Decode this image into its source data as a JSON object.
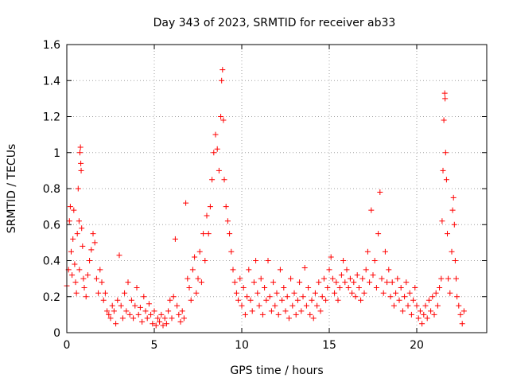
{
  "chart_data": {
    "type": "scatter",
    "title": "Day 343 of 2023, SRMTID for receiver ab33",
    "xlabel": "GPS time / hours",
    "ylabel": "SRMTID / TECUs",
    "xlim": [
      0,
      24
    ],
    "ylim": [
      0,
      1.6
    ],
    "x_ticks": [
      0,
      5,
      10,
      15,
      20
    ],
    "x_tick_labels": [
      "0",
      "5",
      "10",
      "15",
      "20"
    ],
    "y_ticks": [
      0,
      0.2,
      0.4,
      0.6,
      0.8,
      1,
      1.2,
      1.4,
      1.6
    ],
    "y_tick_labels": [
      "0",
      "0.2",
      "0.4",
      "0.6",
      "0.8",
      "1",
      "1.2",
      "1.4",
      "1.6"
    ],
    "grid": true,
    "marker": "plus",
    "series_color": "#ff0000",
    "series": [
      {
        "name": "SRMTID",
        "points": [
          [
            0.0,
            0.26
          ],
          [
            0.1,
            0.35
          ],
          [
            0.15,
            0.62
          ],
          [
            0.2,
            0.7
          ],
          [
            0.25,
            0.45
          ],
          [
            0.3,
            0.32
          ],
          [
            0.35,
            0.52
          ],
          [
            0.4,
            0.68
          ],
          [
            0.45,
            0.38
          ],
          [
            0.5,
            0.28
          ],
          [
            0.55,
            0.22
          ],
          [
            0.6,
            0.55
          ],
          [
            0.65,
            0.8
          ],
          [
            0.7,
            0.62
          ],
          [
            0.72,
            0.35
          ],
          [
            0.75,
            1.0
          ],
          [
            0.78,
            1.03
          ],
          [
            0.8,
            0.94
          ],
          [
            0.82,
            0.9
          ],
          [
            0.85,
            0.58
          ],
          [
            0.9,
            0.48
          ],
          [
            0.95,
            0.3
          ],
          [
            1.0,
            0.25
          ],
          [
            1.1,
            0.2
          ],
          [
            1.2,
            0.32
          ],
          [
            1.3,
            0.4
          ],
          [
            1.4,
            0.46
          ],
          [
            1.5,
            0.55
          ],
          [
            1.6,
            0.5
          ],
          [
            1.7,
            0.3
          ],
          [
            1.8,
            0.22
          ],
          [
            1.9,
            0.35
          ],
          [
            2.0,
            0.28
          ],
          [
            2.1,
            0.18
          ],
          [
            2.2,
            0.22
          ],
          [
            2.3,
            0.12
          ],
          [
            2.4,
            0.1
          ],
          [
            2.5,
            0.08
          ],
          [
            2.6,
            0.15
          ],
          [
            2.7,
            0.12
          ],
          [
            2.8,
            0.05
          ],
          [
            2.9,
            0.18
          ],
          [
            3.0,
            0.43
          ],
          [
            3.1,
            0.15
          ],
          [
            3.2,
            0.08
          ],
          [
            3.3,
            0.22
          ],
          [
            3.4,
            0.12
          ],
          [
            3.5,
            0.28
          ],
          [
            3.6,
            0.1
          ],
          [
            3.7,
            0.18
          ],
          [
            3.8,
            0.08
          ],
          [
            3.9,
            0.15
          ],
          [
            4.0,
            0.25
          ],
          [
            4.1,
            0.1
          ],
          [
            4.2,
            0.14
          ],
          [
            4.3,
            0.06
          ],
          [
            4.4,
            0.2
          ],
          [
            4.5,
            0.12
          ],
          [
            4.6,
            0.08
          ],
          [
            4.7,
            0.16
          ],
          [
            4.8,
            0.1
          ],
          [
            4.9,
            0.05
          ],
          [
            5.0,
            0.12
          ],
          [
            5.1,
            0.04
          ],
          [
            5.2,
            0.08
          ],
          [
            5.3,
            0.06
          ],
          [
            5.4,
            0.1
          ],
          [
            5.5,
            0.04
          ],
          [
            5.6,
            0.08
          ],
          [
            5.7,
            0.05
          ],
          [
            5.8,
            0.12
          ],
          [
            5.9,
            0.18
          ],
          [
            6.0,
            0.08
          ],
          [
            6.1,
            0.2
          ],
          [
            6.2,
            0.52
          ],
          [
            6.3,
            0.15
          ],
          [
            6.4,
            0.1
          ],
          [
            6.5,
            0.06
          ],
          [
            6.6,
            0.12
          ],
          [
            6.7,
            0.08
          ],
          [
            6.8,
            0.72
          ],
          [
            6.9,
            0.3
          ],
          [
            7.0,
            0.25
          ],
          [
            7.1,
            0.18
          ],
          [
            7.2,
            0.35
          ],
          [
            7.3,
            0.42
          ],
          [
            7.4,
            0.22
          ],
          [
            7.5,
            0.3
          ],
          [
            7.6,
            0.45
          ],
          [
            7.7,
            0.28
          ],
          [
            7.8,
            0.55
          ],
          [
            7.9,
            0.4
          ],
          [
            8.0,
            0.65
          ],
          [
            8.1,
            0.55
          ],
          [
            8.2,
            0.7
          ],
          [
            8.3,
            0.85
          ],
          [
            8.4,
            1.0
          ],
          [
            8.5,
            1.1
          ],
          [
            8.6,
            1.02
          ],
          [
            8.7,
            0.9
          ],
          [
            8.8,
            1.2
          ],
          [
            8.85,
            1.4
          ],
          [
            8.9,
            1.46
          ],
          [
            8.95,
            1.18
          ],
          [
            9.0,
            0.85
          ],
          [
            9.1,
            0.7
          ],
          [
            9.2,
            0.62
          ],
          [
            9.3,
            0.55
          ],
          [
            9.4,
            0.45
          ],
          [
            9.5,
            0.35
          ],
          [
            9.6,
            0.28
          ],
          [
            9.7,
            0.22
          ],
          [
            9.8,
            0.18
          ],
          [
            9.9,
            0.3
          ],
          [
            10.0,
            0.15
          ],
          [
            10.1,
            0.25
          ],
          [
            10.2,
            0.1
          ],
          [
            10.3,
            0.2
          ],
          [
            10.4,
            0.35
          ],
          [
            10.5,
            0.18
          ],
          [
            10.6,
            0.12
          ],
          [
            10.7,
            0.28
          ],
          [
            10.8,
            0.4
          ],
          [
            10.9,
            0.22
          ],
          [
            11.0,
            0.15
          ],
          [
            11.1,
            0.3
          ],
          [
            11.2,
            0.1
          ],
          [
            11.3,
            0.25
          ],
          [
            11.4,
            0.18
          ],
          [
            11.5,
            0.4
          ],
          [
            11.6,
            0.2
          ],
          [
            11.7,
            0.12
          ],
          [
            11.8,
            0.28
          ],
          [
            11.9,
            0.15
          ],
          [
            12.0,
            0.22
          ],
          [
            12.1,
            0.1
          ],
          [
            12.2,
            0.35
          ],
          [
            12.3,
            0.18
          ],
          [
            12.4,
            0.25
          ],
          [
            12.5,
            0.12
          ],
          [
            12.6,
            0.2
          ],
          [
            12.7,
            0.08
          ],
          [
            12.8,
            0.3
          ],
          [
            12.9,
            0.15
          ],
          [
            13.0,
            0.22
          ],
          [
            13.1,
            0.1
          ],
          [
            13.2,
            0.18
          ],
          [
            13.3,
            0.28
          ],
          [
            13.4,
            0.12
          ],
          [
            13.5,
            0.2
          ],
          [
            13.6,
            0.36
          ],
          [
            13.7,
            0.15
          ],
          [
            13.8,
            0.25
          ],
          [
            13.9,
            0.1
          ],
          [
            14.0,
            0.18
          ],
          [
            14.1,
            0.08
          ],
          [
            14.2,
            0.22
          ],
          [
            14.3,
            0.15
          ],
          [
            14.4,
            0.28
          ],
          [
            14.5,
            0.12
          ],
          [
            14.6,
            0.2
          ],
          [
            14.7,
            0.3
          ],
          [
            14.8,
            0.18
          ],
          [
            14.9,
            0.25
          ],
          [
            15.0,
            0.35
          ],
          [
            15.1,
            0.42
          ],
          [
            15.2,
            0.3
          ],
          [
            15.3,
            0.22
          ],
          [
            15.4,
            0.28
          ],
          [
            15.5,
            0.18
          ],
          [
            15.6,
            0.25
          ],
          [
            15.7,
            0.32
          ],
          [
            15.8,
            0.4
          ],
          [
            15.9,
            0.28
          ],
          [
            16.0,
            0.35
          ],
          [
            16.1,
            0.25
          ],
          [
            16.2,
            0.3
          ],
          [
            16.3,
            0.22
          ],
          [
            16.4,
            0.28
          ],
          [
            16.5,
            0.2
          ],
          [
            16.6,
            0.32
          ],
          [
            16.7,
            0.25
          ],
          [
            16.8,
            0.18
          ],
          [
            16.9,
            0.3
          ],
          [
            17.0,
            0.22
          ],
          [
            17.1,
            0.35
          ],
          [
            17.2,
            0.45
          ],
          [
            17.3,
            0.28
          ],
          [
            17.4,
            0.68
          ],
          [
            17.5,
            0.32
          ],
          [
            17.6,
            0.4
          ],
          [
            17.7,
            0.25
          ],
          [
            17.8,
            0.55
          ],
          [
            17.9,
            0.78
          ],
          [
            18.0,
            0.3
          ],
          [
            18.1,
            0.22
          ],
          [
            18.2,
            0.45
          ],
          [
            18.3,
            0.28
          ],
          [
            18.4,
            0.35
          ],
          [
            18.5,
            0.2
          ],
          [
            18.6,
            0.28
          ],
          [
            18.7,
            0.15
          ],
          [
            18.8,
            0.22
          ],
          [
            18.9,
            0.3
          ],
          [
            19.0,
            0.18
          ],
          [
            19.1,
            0.25
          ],
          [
            19.2,
            0.12
          ],
          [
            19.3,
            0.2
          ],
          [
            19.4,
            0.28
          ],
          [
            19.5,
            0.15
          ],
          [
            19.6,
            0.22
          ],
          [
            19.7,
            0.1
          ],
          [
            19.8,
            0.18
          ],
          [
            19.9,
            0.25
          ],
          [
            20.0,
            0.15
          ],
          [
            20.1,
            0.08
          ],
          [
            20.2,
            0.12
          ],
          [
            20.3,
            0.05
          ],
          [
            20.4,
            0.1
          ],
          [
            20.5,
            0.15
          ],
          [
            20.6,
            0.08
          ],
          [
            20.7,
            0.18
          ],
          [
            20.8,
            0.12
          ],
          [
            20.9,
            0.2
          ],
          [
            21.0,
            0.1
          ],
          [
            21.1,
            0.22
          ],
          [
            21.2,
            0.15
          ],
          [
            21.3,
            0.25
          ],
          [
            21.4,
            0.3
          ],
          [
            21.45,
            0.62
          ],
          [
            21.5,
            0.9
          ],
          [
            21.55,
            1.18
          ],
          [
            21.6,
            1.33
          ],
          [
            21.62,
            1.3
          ],
          [
            21.65,
            1.0
          ],
          [
            21.7,
            0.85
          ],
          [
            21.75,
            0.55
          ],
          [
            21.8,
            0.3
          ],
          [
            21.9,
            0.22
          ],
          [
            22.0,
            0.45
          ],
          [
            22.05,
            0.68
          ],
          [
            22.1,
            0.75
          ],
          [
            22.15,
            0.6
          ],
          [
            22.2,
            0.4
          ],
          [
            22.25,
            0.3
          ],
          [
            22.3,
            0.2
          ],
          [
            22.4,
            0.15
          ],
          [
            22.5,
            0.1
          ],
          [
            22.6,
            0.05
          ],
          [
            22.7,
            0.12
          ]
        ]
      }
    ]
  }
}
